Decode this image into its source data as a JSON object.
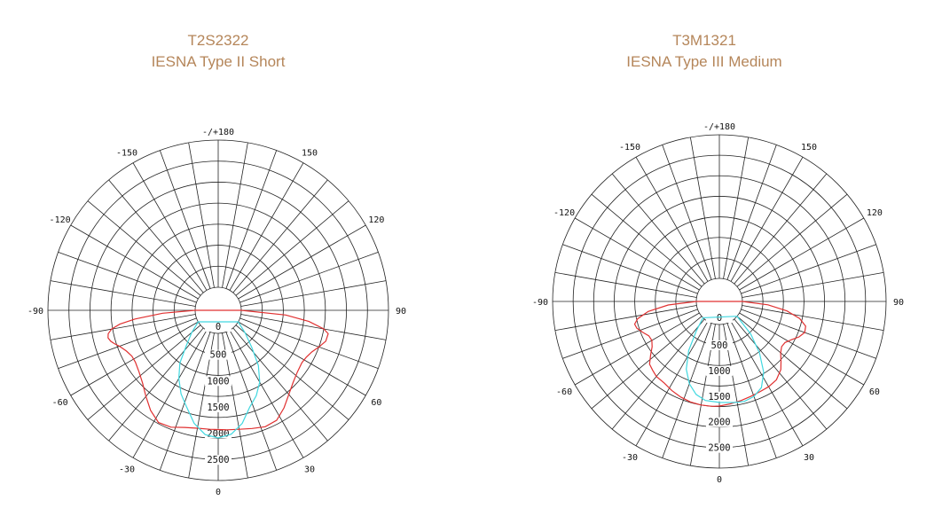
{
  "chart_data": [
    {
      "type": "polar-line",
      "title": "T2S2322",
      "subtitle": "IESNA Type II Short",
      "angle_ticks": [
        "-/+180",
        "150",
        "120",
        "90",
        "60",
        "30",
        "0",
        "-30",
        "-60",
        "-90",
        "-120",
        "-150"
      ],
      "angle_tick_values": [
        180,
        150,
        120,
        90,
        60,
        30,
        0,
        -30,
        -60,
        -90,
        -120,
        -150
      ],
      "radial_ticks": [
        "0",
        "500",
        "1000",
        "1500",
        "2000",
        "2500"
      ],
      "radial_tick_values": [
        0,
        500,
        1000,
        1500,
        2000,
        2500
      ],
      "rlim": [
        0,
        2800
      ],
      "grid": true,
      "series": [
        {
          "color": "#e03030",
          "points": [
            [
              -90,
              0
            ],
            [
              -87,
              620
            ],
            [
              -84,
              1150
            ],
            [
              -82,
              1450
            ],
            [
              -80,
              1620
            ],
            [
              -78,
              1700
            ],
            [
              -76,
              1720
            ],
            [
              -74,
              1690
            ],
            [
              -72,
              1630
            ],
            [
              -70,
              1560
            ],
            [
              -66,
              1470
            ],
            [
              -62,
              1420
            ],
            [
              -58,
              1420
            ],
            [
              -52,
              1470
            ],
            [
              -46,
              1560
            ],
            [
              -40,
              1700
            ],
            [
              -34,
              1860
            ],
            [
              -28,
              1980
            ],
            [
              -22,
              1960
            ],
            [
              -16,
              1880
            ],
            [
              -10,
              1840
            ],
            [
              -4,
              1830
            ],
            [
              0,
              1830
            ],
            [
              4,
              1840
            ],
            [
              10,
              1860
            ],
            [
              16,
              1900
            ],
            [
              22,
              1950
            ],
            [
              28,
              1930
            ],
            [
              34,
              1800
            ],
            [
              40,
              1650
            ],
            [
              46,
              1540
            ],
            [
              52,
              1470
            ],
            [
              58,
              1440
            ],
            [
              62,
              1460
            ],
            [
              66,
              1510
            ],
            [
              70,
              1600
            ],
            [
              74,
              1690
            ],
            [
              78,
              1700
            ],
            [
              80,
              1600
            ],
            [
              83,
              1300
            ],
            [
              86,
              850
            ],
            [
              90,
              0
            ]
          ]
        },
        {
          "color": "#40d8e0",
          "points": [
            [
              -60,
              0
            ],
            [
              -50,
              220
            ],
            [
              -42,
              470
            ],
            [
              -36,
              800
            ],
            [
              -30,
              1060
            ],
            [
              -24,
              1300
            ],
            [
              -18,
              1500
            ],
            [
              -12,
              1760
            ],
            [
              -6,
              1940
            ],
            [
              0,
              1990
            ],
            [
              6,
              1930
            ],
            [
              12,
              1760
            ],
            [
              18,
              1500
            ],
            [
              24,
              1340
            ],
            [
              30,
              1140
            ],
            [
              36,
              860
            ],
            [
              42,
              520
            ],
            [
              50,
              230
            ],
            [
              60,
              0
            ]
          ]
        }
      ]
    },
    {
      "type": "polar-line",
      "title": "T3M1321",
      "subtitle": "IESNA Type III Medium",
      "angle_ticks": [
        "-/+180",
        "150",
        "120",
        "90",
        "60",
        "30",
        "0",
        "-30",
        "-60",
        "-90",
        "-120",
        "-150"
      ],
      "angle_tick_values": [
        180,
        150,
        120,
        90,
        60,
        30,
        0,
        -30,
        -60,
        -90,
        -120,
        -150
      ],
      "radial_ticks": [
        "0",
        "500",
        "1000",
        "1500",
        "2000",
        "2500"
      ],
      "radial_tick_values": [
        0,
        500,
        1000,
        1500,
        2000,
        2500
      ],
      "rlim": [
        0,
        2800
      ],
      "grid": true,
      "series": [
        {
          "color": "#e03030",
          "points": [
            [
              -90,
              0
            ],
            [
              -86,
              550
            ],
            [
              -82,
              950
            ],
            [
              -78,
              1180
            ],
            [
              -75,
              1260
            ],
            [
              -72,
              1240
            ],
            [
              -68,
              1160
            ],
            [
              -64,
              1080
            ],
            [
              -60,
              1070
            ],
            [
              -56,
              1130
            ],
            [
              -52,
              1250
            ],
            [
              -48,
              1380
            ],
            [
              -44,
              1420
            ],
            [
              -40,
              1460
            ],
            [
              -34,
              1470
            ],
            [
              -28,
              1520
            ],
            [
              -22,
              1560
            ],
            [
              -16,
              1590
            ],
            [
              -10,
              1600
            ],
            [
              -4,
              1600
            ],
            [
              0,
              1590
            ],
            [
              6,
              1560
            ],
            [
              12,
              1530
            ],
            [
              18,
              1500
            ],
            [
              24,
              1480
            ],
            [
              30,
              1470
            ],
            [
              36,
              1440
            ],
            [
              42,
              1340
            ],
            [
              46,
              1220
            ],
            [
              50,
              1110
            ],
            [
              54,
              1050
            ],
            [
              58,
              1060
            ],
            [
              62,
              1140
            ],
            [
              66,
              1250
            ],
            [
              70,
              1320
            ],
            [
              74,
              1300
            ],
            [
              78,
              1150
            ],
            [
              82,
              880
            ],
            [
              86,
              500
            ],
            [
              90,
              0
            ]
          ]
        },
        {
          "color": "#40d8e0",
          "points": [
            [
              -45,
              0
            ],
            [
              -38,
              280
            ],
            [
              -32,
              680
            ],
            [
              -26,
              1020
            ],
            [
              -20,
              1260
            ],
            [
              -14,
              1420
            ],
            [
              -8,
              1500
            ],
            [
              0,
              1520
            ],
            [
              8,
              1540
            ],
            [
              14,
              1560
            ],
            [
              20,
              1520
            ],
            [
              26,
              1420
            ],
            [
              32,
              1180
            ],
            [
              38,
              820
            ],
            [
              44,
              430
            ],
            [
              50,
              0
            ]
          ]
        }
      ]
    }
  ]
}
